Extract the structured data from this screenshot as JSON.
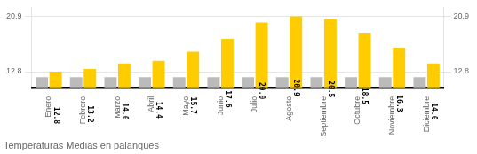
{
  "chart_data": {
    "type": "bar",
    "title": "Temperaturas Medias en palanques",
    "categories": [
      "Enero",
      "Febrero",
      "Marzo",
      "Abril",
      "Mayo",
      "Junio",
      "Julio",
      "Agosto",
      "Septiembre",
      "Octubre",
      "Noviembre",
      "Diciembre"
    ],
    "series": [
      {
        "color": "#BBBBBB",
        "values": [
          12.0,
          12.0,
          12.0,
          12.0,
          12.0,
          12.0,
          12.0,
          12.0,
          12.0,
          12.0,
          12.0,
          12.0
        ]
      },
      {
        "color": "#FFCC00",
        "values": [
          12.8,
          13.2,
          14.0,
          14.4,
          15.7,
          17.6,
          20.0,
          20.9,
          20.5,
          18.5,
          16.3,
          14.0
        ],
        "value_labels": [
          "12.8",
          "13.2",
          "14.0",
          "14.4",
          "15.7",
          "17.6",
          "20.0",
          "20.9",
          "20.5",
          "18.5",
          "16.3",
          "14.0"
        ],
        "data_labels": true
      }
    ],
    "ylim": [
      10.5,
      22.2
    ],
    "yticks": [
      12.8,
      20.9
    ],
    "y2lim": [
      10.5,
      22.2
    ],
    "y2ticks": [
      12.8,
      20.9
    ],
    "grid": true
  }
}
